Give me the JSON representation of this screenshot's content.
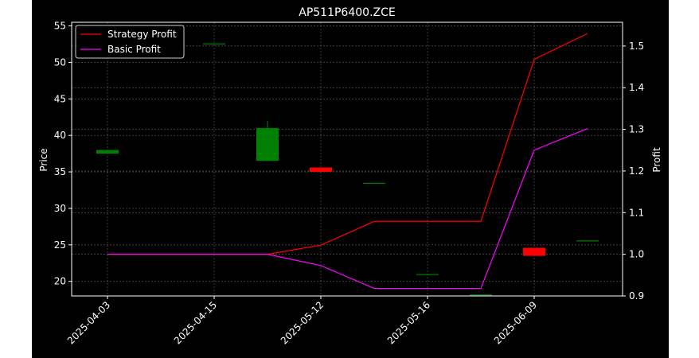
{
  "chart_data": {
    "type": "candlestick+line",
    "title": "AP511P6400.ZCE",
    "ylabel_left": "Price",
    "ylabel_right": "Profit",
    "ylim_left": [
      18.0,
      55.5
    ],
    "ylim_right": [
      0.9,
      1.557
    ],
    "yticks_left": [
      20,
      25,
      30,
      35,
      40,
      45,
      50,
      55
    ],
    "yticks_right": [
      0.9,
      1.0,
      1.1,
      1.2,
      1.3,
      1.4,
      1.5
    ],
    "x_tick_labels": [
      "2025-04-03",
      "2025-04-15",
      "2025-05-12",
      "2025-05-16",
      "2025-06-09"
    ],
    "x_tick_positions": [
      0,
      2,
      4,
      6,
      8
    ],
    "grid": true,
    "legend_position": "upper-left",
    "candles": [
      {
        "pos": 0,
        "open": 37.5,
        "high": 38.0,
        "low": 37.5,
        "close": 38.0
      },
      {
        "pos": 2,
        "open": 52.6,
        "high": 52.6,
        "low": 52.6,
        "close": 52.6
      },
      {
        "pos": 3,
        "open": 36.5,
        "high": 42.0,
        "low": 36.5,
        "close": 41.0
      },
      {
        "pos": 4,
        "open": 35.6,
        "high": 35.6,
        "low": 35.0,
        "close": 35.0
      },
      {
        "pos": 5,
        "open": 33.5,
        "high": 33.5,
        "low": 33.5,
        "close": 33.5
      },
      {
        "pos": 6,
        "open": 21.0,
        "high": 21.0,
        "low": 21.0,
        "close": 21.0
      },
      {
        "pos": 7,
        "open": 18.2,
        "high": 18.2,
        "low": 18.2,
        "close": 18.2
      },
      {
        "pos": 8,
        "open": 24.6,
        "high": 24.6,
        "low": 23.5,
        "close": 23.5
      },
      {
        "pos": 9,
        "open": 25.6,
        "high": 25.6,
        "low": 25.6,
        "close": 25.6
      }
    ],
    "series": [
      {
        "name": "Strategy Profit",
        "color": "#ff0000",
        "x": [
          0,
          1,
          2,
          3,
          4,
          5,
          6,
          7,
          8,
          9
        ],
        "values": [
          1.0,
          1.0,
          1.0,
          1.0,
          1.022,
          1.079,
          1.079,
          1.079,
          1.468,
          1.53
        ]
      },
      {
        "name": "Basic Profit",
        "color": "#ff00ff",
        "x": [
          0,
          1,
          2,
          3,
          4,
          5,
          6,
          7,
          8,
          9
        ],
        "values": [
          1.0,
          1.0,
          1.0,
          1.0,
          0.973,
          0.918,
          0.918,
          0.918,
          1.25,
          1.302
        ]
      }
    ],
    "up_color": "#008000",
    "down_color": "#ff0000"
  }
}
